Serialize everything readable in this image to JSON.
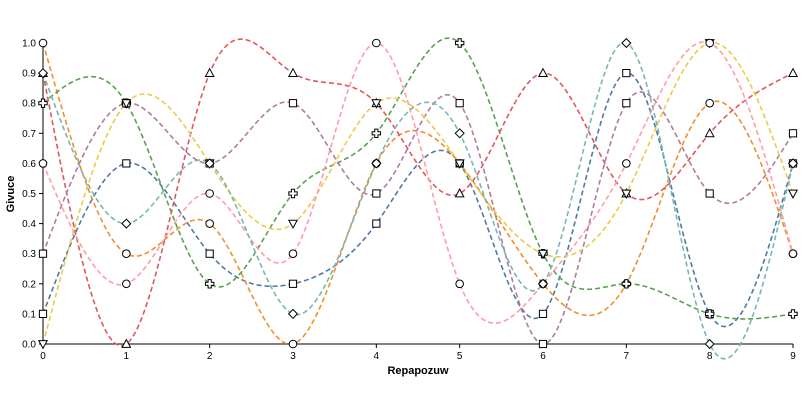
{
  "chart_data": {
    "type": "line",
    "title": "",
    "xlabel": "Repapozuw",
    "ylabel": "Givuce",
    "xlim": [
      0,
      9
    ],
    "ylim": [
      0,
      1
    ],
    "x_ticks": [
      "0",
      "1",
      "2",
      "3",
      "4",
      "5",
      "6",
      "7",
      "8",
      "9"
    ],
    "y_ticks": [
      "0.0",
      "0.1",
      "0.2",
      "0.3",
      "0.4",
      "0.5",
      "0.6",
      "0.7",
      "0.8",
      "0.9",
      "1.0"
    ],
    "grid": false,
    "legend": "none",
    "line_style": "dashed, smooth",
    "x": [
      0,
      1,
      2,
      3,
      4,
      5,
      6,
      7,
      8,
      9
    ],
    "series": [
      {
        "color": "#4e79a7",
        "marker": "square",
        "values": [
          0.1,
          0.6,
          0.3,
          0.2,
          0.4,
          0.6,
          0.1,
          0.9,
          0.1,
          0.6
        ]
      },
      {
        "color": "#f28e2b",
        "marker": "circle",
        "values": [
          1.0,
          0.3,
          0.4,
          0.0,
          0.6,
          0.6,
          0.2,
          0.2,
          0.8,
          0.3
        ]
      },
      {
        "color": "#59a14f",
        "marker": "plus",
        "values": [
          0.8,
          0.8,
          0.2,
          0.5,
          0.7,
          1.0,
          0.3,
          0.2,
          0.1,
          0.1
        ]
      },
      {
        "color": "#e15759",
        "marker": "triangle-up",
        "values": [
          0.9,
          0.0,
          0.9,
          0.9,
          0.8,
          0.5,
          0.9,
          0.5,
          0.7,
          0.9
        ]
      },
      {
        "color": "#b07aa1",
        "marker": "square",
        "values": [
          0.3,
          0.8,
          0.6,
          0.8,
          0.5,
          0.8,
          0.0,
          0.8,
          0.5,
          0.7
        ]
      },
      {
        "color": "#edc948",
        "marker": "triangle-down",
        "values": [
          0.0,
          0.8,
          0.6,
          0.4,
          0.8,
          0.6,
          0.3,
          0.5,
          1.0,
          0.5
        ]
      },
      {
        "color": "#ff9da7",
        "marker": "circle",
        "values": [
          0.6,
          0.2,
          0.5,
          0.3,
          1.0,
          0.2,
          0.2,
          0.6,
          1.0,
          0.3
        ]
      },
      {
        "color": "#76b7b2",
        "marker": "diamond",
        "values": [
          0.9,
          0.4,
          0.6,
          0.1,
          0.6,
          0.7,
          0.2,
          1.0,
          0.0,
          0.6
        ]
      }
    ]
  }
}
